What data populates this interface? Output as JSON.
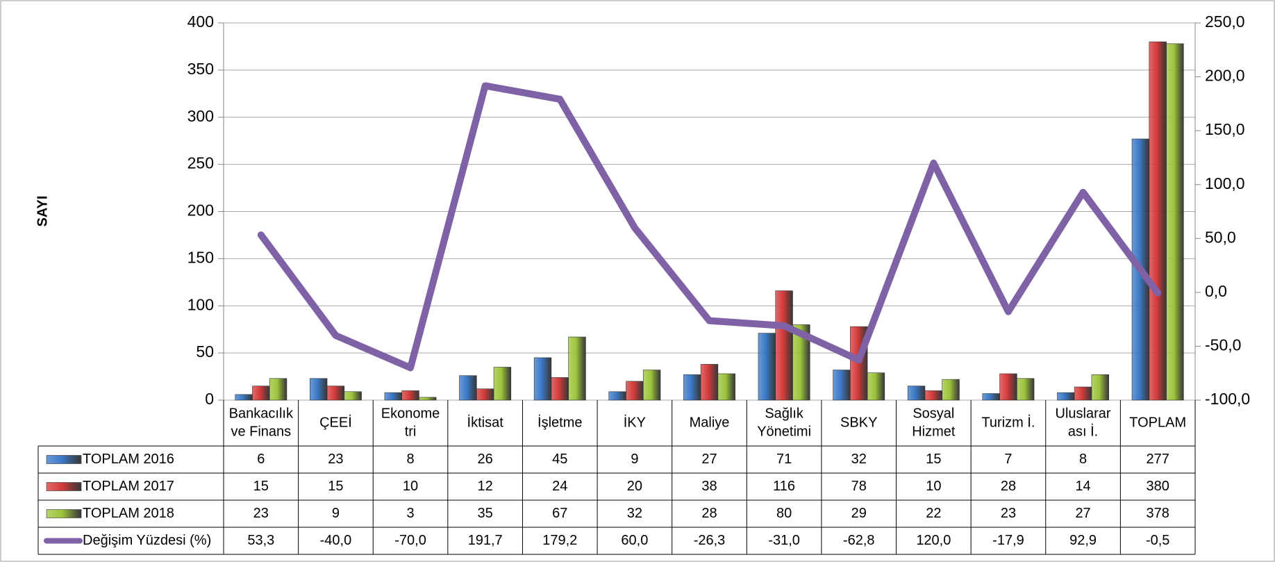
{
  "chart_data": {
    "type": "bar",
    "y_label": "SAYI",
    "categories": [
      [
        "Bankacılık",
        "ve Finans"
      ],
      [
        "ÇEEİ"
      ],
      [
        "Ekonome",
        "tri"
      ],
      [
        "İktisat"
      ],
      [
        "İşletme"
      ],
      [
        "İKY"
      ],
      [
        "Maliye"
      ],
      [
        "Sağlık",
        "Yönetimi"
      ],
      [
        "SBKY"
      ],
      [
        "Sosyal",
        "Hizmet"
      ],
      [
        "Turizm İ."
      ],
      [
        "Uluslarar",
        "ası İ."
      ],
      [
        "TOPLAM"
      ]
    ],
    "series": [
      {
        "name": "TOPLAM 2016",
        "type": "bar",
        "color": "#3a78c6",
        "values": [
          6,
          23,
          8,
          26,
          45,
          9,
          27,
          71,
          32,
          15,
          7,
          8,
          277
        ]
      },
      {
        "name": "TOPLAM 2017",
        "type": "bar",
        "color": "#d43a3a",
        "values": [
          15,
          15,
          10,
          12,
          24,
          20,
          38,
          116,
          78,
          10,
          28,
          14,
          380
        ]
      },
      {
        "name": "TOPLAM 2018",
        "type": "bar",
        "color": "#9cc43a",
        "values": [
          23,
          9,
          3,
          35,
          67,
          32,
          28,
          80,
          29,
          22,
          23,
          27,
          378
        ]
      },
      {
        "name": "Değişim Yüzdesi (%)",
        "type": "line",
        "axis": "y2",
        "color": "#7f62a6",
        "values": [
          53.3,
          -40.0,
          -70.0,
          191.7,
          179.2,
          60.0,
          -26.3,
          -31.0,
          -62.8,
          120.0,
          -17.9,
          92.9,
          -0.5
        ],
        "value_labels": [
          "53,3",
          "-40,0",
          "-70,0",
          "191,7",
          "179,2",
          "60,0",
          "-26,3",
          "-31,0",
          "-62,8",
          "120,0",
          "-17,9",
          "92,9",
          "-0,5"
        ]
      }
    ],
    "ylim": [
      0,
      400
    ],
    "yticks": [
      0,
      50,
      100,
      150,
      200,
      250,
      300,
      350,
      400
    ],
    "y2lim": [
      -100,
      250
    ],
    "y2ticks": [
      {
        "value": -100,
        "label": "-100,0"
      },
      {
        "value": -50,
        "label": "-50,0"
      },
      {
        "value": 0,
        "label": "0,0"
      },
      {
        "value": 50,
        "label": "50,0"
      },
      {
        "value": 100,
        "label": "100,0"
      },
      {
        "value": 150,
        "label": "150,0"
      },
      {
        "value": 200,
        "label": "200,0"
      },
      {
        "value": 250,
        "label": "250,0"
      }
    ],
    "grid": true
  }
}
